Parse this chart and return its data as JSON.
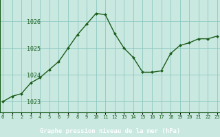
{
  "x": [
    0,
    1,
    2,
    3,
    4,
    5,
    6,
    7,
    8,
    9,
    10,
    11,
    12,
    13,
    14,
    15,
    16,
    17,
    18,
    19,
    20,
    21,
    22,
    23
  ],
  "y": [
    1023.0,
    1023.2,
    1023.3,
    1023.7,
    1023.9,
    1024.2,
    1024.5,
    1025.0,
    1025.5,
    1025.9,
    1026.3,
    1026.25,
    1025.55,
    1025.0,
    1024.65,
    1024.1,
    1024.1,
    1024.15,
    1024.8,
    1025.1,
    1025.2,
    1025.35,
    1025.35,
    1025.45
  ],
  "line_color": "#1a5c1a",
  "marker_color": "#1a5c1a",
  "bg_color": "#c8e8e0",
  "grid_color": "#8ec8c0",
  "xlabel": "Graphe pression niveau de la mer (hPa)",
  "xlabel_color": "#ffffff",
  "tick_color": "#1a5c1a",
  "border_color": "#1a5c1a",
  "bottom_bar_color": "#2a5c2a",
  "ylim": [
    1022.6,
    1026.8
  ],
  "yticks": [
    1023,
    1024,
    1025,
    1026
  ],
  "xticks": [
    0,
    1,
    2,
    3,
    4,
    5,
    6,
    7,
    8,
    9,
    10,
    11,
    12,
    13,
    14,
    15,
    16,
    17,
    18,
    19,
    20,
    21,
    22,
    23
  ]
}
